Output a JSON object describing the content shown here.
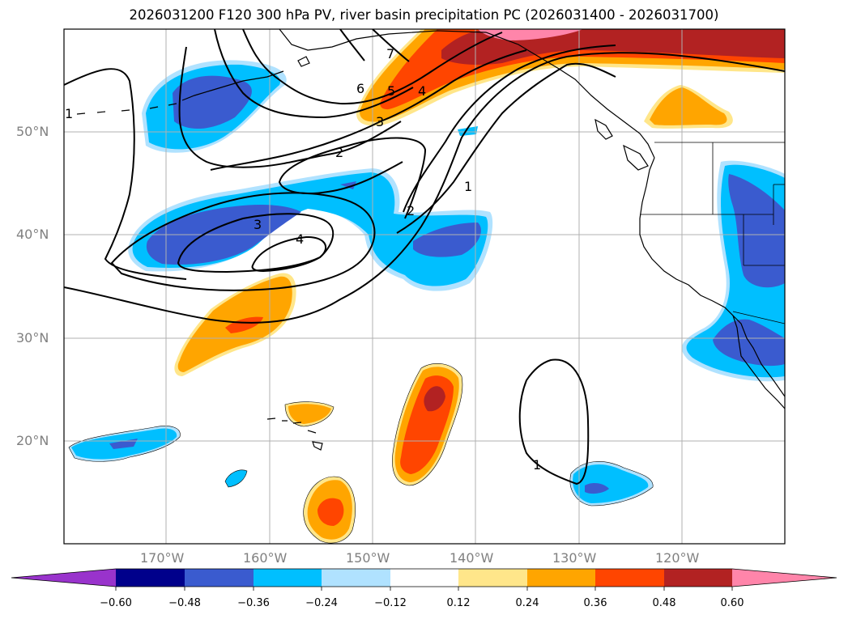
{
  "title": "2026031200 F120 300 hPa PV, river basin precipitation PC (2026031400 - 2026031700)",
  "lat_labels": [
    "50°N",
    "40°N",
    "30°N",
    "20°N"
  ],
  "lon_labels": [
    "170°W",
    "160°W",
    "150°W",
    "140°W",
    "130°W",
    "120°W"
  ],
  "contour_labels": [
    "7",
    "6",
    "5",
    "4",
    "3",
    "2",
    "1",
    "3",
    "4",
    "2",
    "1",
    "1"
  ],
  "colorbar": {
    "ticks": [
      "−0.60",
      "−0.48",
      "−0.36",
      "−0.24",
      "−0.12",
      "0.12",
      "0.24",
      "0.36",
      "0.48",
      "0.60"
    ],
    "colors": [
      "#9933cc",
      "#00008b",
      "#3a5bcf",
      "#00bfff",
      "#b0e2ff",
      "#ffffff",
      "#ffe68a",
      "#ffa500",
      "#ff4500",
      "#b22222",
      "#ff85aa"
    ]
  }
}
